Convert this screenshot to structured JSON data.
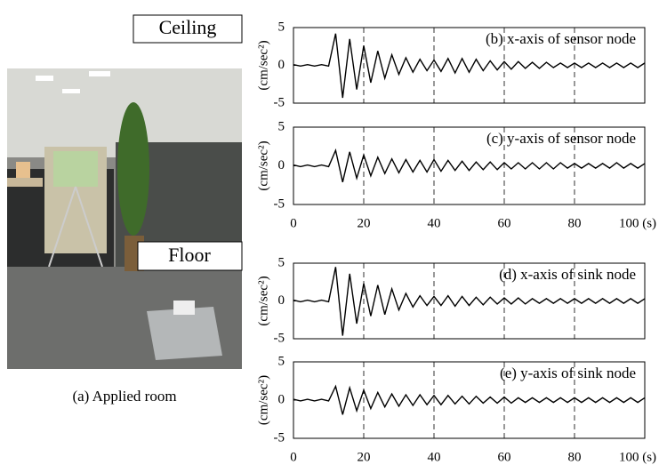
{
  "labels": {
    "ceiling": "Ceiling",
    "floor": "Floor",
    "caption": "(a) Applied room"
  },
  "chart_data": [
    {
      "type": "line",
      "title": "(b) x-axis of sensor node",
      "ylabel": "(cm/sec²)",
      "color": "#000000",
      "x": [
        0,
        2,
        4,
        6,
        8,
        10,
        12,
        14,
        16,
        18,
        20,
        22,
        24,
        26,
        28,
        30,
        32,
        34,
        36,
        38,
        40,
        42,
        44,
        46,
        48,
        50,
        52,
        54,
        56,
        58,
        60,
        62,
        64,
        66,
        68,
        70,
        72,
        74,
        76,
        78,
        80,
        82,
        84,
        86,
        88,
        90,
        92,
        94,
        96,
        98,
        100
      ],
      "values": [
        0.1,
        -0.1,
        0.1,
        -0.1,
        0.1,
        -0.1,
        4.2,
        -4.3,
        3.5,
        -3.2,
        2.6,
        -2.3,
        1.9,
        -1.7,
        1.4,
        -1.2,
        1,
        -0.9,
        0.8,
        -0.7,
        0.7,
        -0.8,
        0.9,
        -1,
        0.9,
        -0.9,
        0.8,
        -0.7,
        0.6,
        -0.6,
        0.5,
        -0.5,
        0.5,
        -0.4,
        0.4,
        -0.4,
        0.4,
        -0.3,
        0.3,
        -0.3,
        0.3,
        -0.3,
        0.3,
        -0.3,
        0.3,
        -0.3,
        0.3,
        -0.3,
        0.3,
        -0.3,
        0.3
      ],
      "xlim": [
        0,
        100
      ],
      "ylim": [
        -5,
        5
      ],
      "xticks": [
        0,
        20,
        40,
        60,
        80,
        100
      ],
      "yticks": [
        -5,
        0,
        5
      ],
      "xtick_labels": false,
      "grid": "dashed"
    },
    {
      "type": "line",
      "title": "(c) y-axis of sensor node",
      "ylabel": "(cm/sec²)",
      "color": "#000000",
      "x": [
        0,
        2,
        4,
        6,
        8,
        10,
        12,
        14,
        16,
        18,
        20,
        22,
        24,
        26,
        28,
        30,
        32,
        34,
        36,
        38,
        40,
        42,
        44,
        46,
        48,
        50,
        52,
        54,
        56,
        58,
        60,
        62,
        64,
        66,
        68,
        70,
        72,
        74,
        76,
        78,
        80,
        82,
        84,
        86,
        88,
        90,
        92,
        94,
        96,
        98,
        100
      ],
      "values": [
        0.1,
        -0.1,
        0.1,
        -0.1,
        0.1,
        -0.1,
        2,
        -2.1,
        1.8,
        -1.6,
        1.4,
        -1.3,
        1.1,
        -1,
        0.9,
        -0.9,
        0.8,
        -0.8,
        0.7,
        -0.8,
        0.8,
        -0.7,
        0.7,
        -0.6,
        0.6,
        -0.6,
        0.5,
        -0.5,
        0.5,
        -0.5,
        0.4,
        -0.4,
        0.4,
        -0.4,
        0.4,
        -0.4,
        0.4,
        -0.4,
        0.4,
        -0.3,
        0.3,
        -0.3,
        0.3,
        -0.3,
        0.3,
        -0.3,
        0.4,
        -0.3,
        0.3,
        -0.3,
        0.3
      ],
      "xlim": [
        0,
        100
      ],
      "ylim": [
        -5,
        5
      ],
      "xticks": [
        0,
        20,
        40,
        60,
        80,
        {
          "value": 100,
          "label": "100 (s)"
        }
      ],
      "yticks": [
        -5,
        0,
        5
      ],
      "xtick_labels": true,
      "grid": "dashed"
    },
    {
      "type": "line",
      "title": "(d) x-axis of sink node",
      "ylabel": "(cm/sec²)",
      "color": "#000000",
      "x": [
        0,
        2,
        4,
        6,
        8,
        10,
        12,
        14,
        16,
        18,
        20,
        22,
        24,
        26,
        28,
        30,
        32,
        34,
        36,
        38,
        40,
        42,
        44,
        46,
        48,
        50,
        52,
        54,
        56,
        58,
        60,
        62,
        64,
        66,
        68,
        70,
        72,
        74,
        76,
        78,
        80,
        82,
        84,
        86,
        88,
        90,
        92,
        94,
        96,
        98,
        100
      ],
      "values": [
        0.1,
        -0.1,
        0.1,
        -0.1,
        0.1,
        -0.1,
        4.5,
        -4.6,
        3.6,
        -3,
        2.3,
        -2,
        2.1,
        -1.8,
        1.6,
        -1.2,
        1,
        -0.8,
        0.7,
        -0.6,
        0.6,
        -0.6,
        0.7,
        -0.7,
        0.6,
        -0.6,
        0.5,
        -0.5,
        0.5,
        -0.4,
        0.4,
        -0.4,
        0.4,
        -0.4,
        0.3,
        -0.3,
        0.3,
        -0.3,
        0.3,
        -0.3,
        0.3,
        -0.3,
        0.3,
        -0.3,
        0.3,
        -0.3,
        0.3,
        -0.3,
        0.3,
        -0.3,
        0.3
      ],
      "xlim": [
        0,
        100
      ],
      "ylim": [
        -5,
        5
      ],
      "xticks": [
        0,
        20,
        40,
        60,
        80,
        100
      ],
      "yticks": [
        -5,
        0,
        5
      ],
      "xtick_labels": false,
      "grid": "dashed"
    },
    {
      "type": "line",
      "title": "(e) y-axis of sink node",
      "ylabel": "(cm/sec²)",
      "color": "#000000",
      "x": [
        0,
        2,
        4,
        6,
        8,
        10,
        12,
        14,
        16,
        18,
        20,
        22,
        24,
        26,
        28,
        30,
        32,
        34,
        36,
        38,
        40,
        42,
        44,
        46,
        48,
        50,
        52,
        54,
        56,
        58,
        60,
        62,
        64,
        66,
        68,
        70,
        72,
        74,
        76,
        78,
        80,
        82,
        84,
        86,
        88,
        90,
        92,
        94,
        96,
        98,
        100
      ],
      "values": [
        0.1,
        -0.1,
        0.1,
        -0.1,
        0.1,
        -0.1,
        1.8,
        -1.9,
        1.6,
        -1.4,
        1.3,
        -1.1,
        1,
        -0.9,
        0.8,
        -0.8,
        0.7,
        -0.7,
        0.7,
        -0.6,
        0.6,
        -0.6,
        0.6,
        -0.5,
        0.5,
        -0.5,
        0.5,
        -0.4,
        0.4,
        -0.4,
        0.4,
        -0.4,
        0.3,
        -0.3,
        0.3,
        -0.3,
        0.3,
        -0.3,
        0.3,
        -0.3,
        0.3,
        -0.3,
        0.3,
        -0.3,
        0.3,
        -0.3,
        0.3,
        -0.3,
        0.3,
        -0.3,
        0.3
      ],
      "xlim": [
        0,
        100
      ],
      "ylim": [
        -5,
        5
      ],
      "xticks": [
        0,
        20,
        40,
        60,
        80,
        {
          "value": 100,
          "label": "100 (s)"
        }
      ],
      "yticks": [
        -5,
        0,
        5
      ],
      "xtick_labels": true,
      "grid": "dashed"
    }
  ]
}
